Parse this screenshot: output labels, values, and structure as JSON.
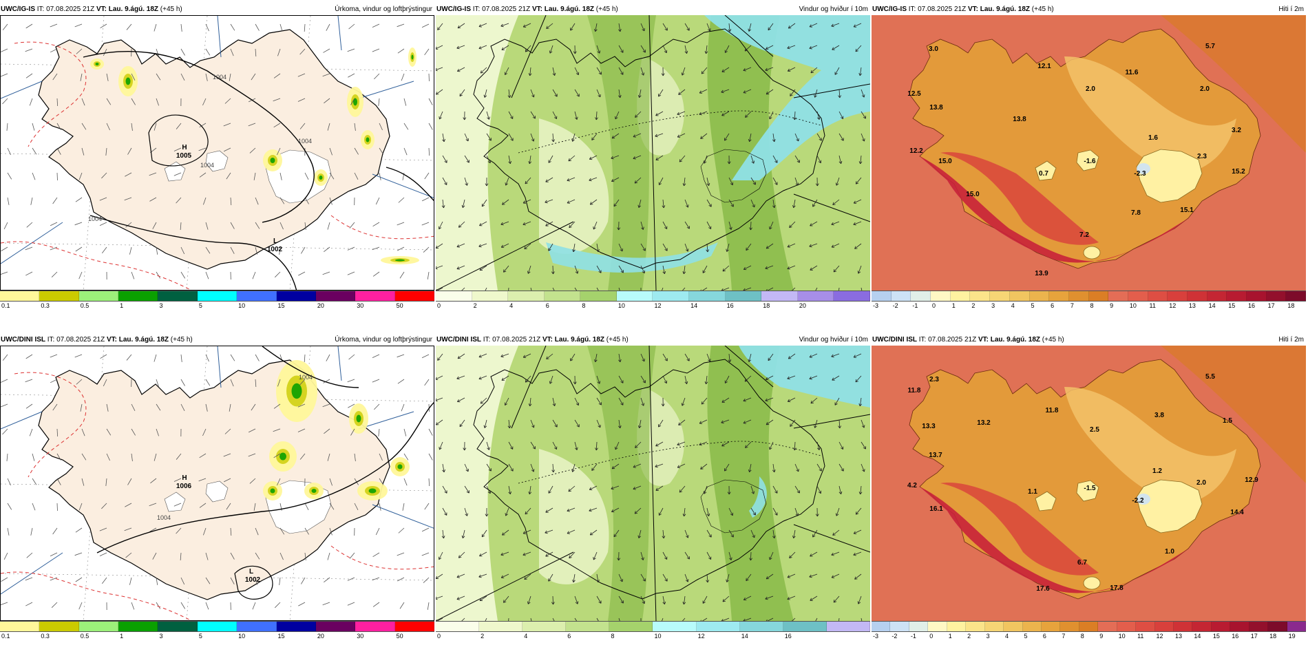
{
  "colors": {
    "land_precip": "#fbeee0",
    "wind_light": "#f3f9d7",
    "wind_mid": "#b9d97a",
    "wind_strong": "#7fb33e",
    "wind_cyan": "#8fe0e6",
    "temp_sea": "#e07155",
    "temp_warm": "#c8223a",
    "temp_mid": "#e39a3a",
    "temp_cold": "#fff1a3"
  },
  "panels": [
    {
      "model": "UWC/IG-IS",
      "it_label": "IT:",
      "it_value": "07.08.2025 21Z",
      "vt_label": "VT:",
      "vt_value": "Lau. 9.ágú. 18Z",
      "lead": "(+45 h)",
      "variable": "Úrkoma, vindur og loftþrýstingur",
      "kind": "precip",
      "map_labels": [
        {
          "text": "H",
          "x": 267,
          "y": 194
        },
        {
          "text": "1005",
          "x": 266,
          "y": 206
        },
        {
          "text": "L",
          "x": 399,
          "y": 330
        },
        {
          "text": "1002",
          "x": 398,
          "y": 342
        }
      ],
      "isobar_labels": [
        {
          "text": "1004",
          "x": 318,
          "y": 92
        },
        {
          "text": "1004",
          "x": 300,
          "y": 220
        },
        {
          "text": "1004",
          "x": 137,
          "y": 298
        },
        {
          "text": "1004",
          "x": 442,
          "y": 185
        }
      ],
      "colorbar": {
        "ticks": [
          "0.1",
          "0.3",
          "0.5",
          "1",
          "3",
          "5",
          "10",
          "15",
          "20",
          "30",
          "50"
        ],
        "colors": [
          "#fff79a",
          "#cbcb00",
          "#9cf07a",
          "#0aa000",
          "#006040",
          "#00ffff",
          "#4070ff",
          "#0000a0",
          "#6a0060",
          "#ff20a0",
          "#ff0000"
        ]
      }
    },
    {
      "model": "UWC/IG-IS",
      "it_label": "IT:",
      "it_value": "07.08.2025 21Z",
      "vt_label": "VT:",
      "vt_value": "Lau. 9.ágú. 18Z",
      "lead": "(+45 h)",
      "variable": "Vindur og hviður í 10m",
      "kind": "wind",
      "map_labels": [],
      "isobar_labels": [],
      "colorbar": {
        "ticks": [
          "0",
          "2",
          "4",
          "6",
          "8",
          "10",
          "12",
          "14",
          "16",
          "18",
          "20"
        ],
        "colors": [
          "#fafeea",
          "#eff8cc",
          "#dcefae",
          "#c3e28e",
          "#a5d26c",
          "#b8fbfb",
          "#9eeaf0",
          "#86d7dc",
          "#6ec0c5",
          "#c3b8f5",
          "#a78ee8",
          "#8a6ce0"
        ]
      }
    },
    {
      "model": "UWC/IG-IS",
      "it_label": "IT:",
      "it_value": "07.08.2025 21Z",
      "vt_label": "VT:",
      "vt_value": "Lau. 9.ágú. 18Z",
      "lead": "(+45 h)",
      "variable": "Hiti í 2m",
      "kind": "temp",
      "map_labels": [
        {
          "text": "3.0",
          "x": 90,
          "y": 52
        },
        {
          "text": "12.1",
          "x": 251,
          "y": 77
        },
        {
          "text": "5.7",
          "x": 492,
          "y": 48
        },
        {
          "text": "11.6",
          "x": 378,
          "y": 86
        },
        {
          "text": "12.5",
          "x": 62,
          "y": 117
        },
        {
          "text": "2.0",
          "x": 318,
          "y": 110
        },
        {
          "text": "2.0",
          "x": 484,
          "y": 110
        },
        {
          "text": "13.8",
          "x": 94,
          "y": 137
        },
        {
          "text": "13.8",
          "x": 215,
          "y": 154
        },
        {
          "text": "3.2",
          "x": 530,
          "y": 170
        },
        {
          "text": "1.6",
          "x": 409,
          "y": 181
        },
        {
          "text": "12.2",
          "x": 65,
          "y": 200
        },
        {
          "text": "15.0",
          "x": 107,
          "y": 215
        },
        {
          "text": "2.3",
          "x": 480,
          "y": 208
        },
        {
          "text": "-1.6",
          "x": 317,
          "y": 215
        },
        {
          "text": "0.7",
          "x": 250,
          "y": 233
        },
        {
          "text": "-2.3",
          "x": 390,
          "y": 233
        },
        {
          "text": "15.2",
          "x": 533,
          "y": 230
        },
        {
          "text": "15.0",
          "x": 147,
          "y": 263
        },
        {
          "text": "7.8",
          "x": 384,
          "y": 290
        },
        {
          "text": "15.1",
          "x": 458,
          "y": 286
        },
        {
          "text": "7.2",
          "x": 309,
          "y": 322
        },
        {
          "text": "13.9",
          "x": 247,
          "y": 378
        }
      ],
      "isobar_labels": [],
      "colorbar": {
        "ticks": [
          "-3",
          "-2",
          "-1",
          "0",
          "1",
          "2",
          "3",
          "4",
          "5",
          "6",
          "7",
          "8",
          "9",
          "10",
          "11",
          "12",
          "13",
          "14",
          "15",
          "16",
          "17",
          "18"
        ],
        "colors": [
          "#b6d0f0",
          "#cde2f6",
          "#e1efe8",
          "#fff8c4",
          "#fff2a0",
          "#fbe48a",
          "#f6d575",
          "#f1c560",
          "#ecb44d",
          "#e7a33c",
          "#e0902f",
          "#db7e25",
          "#e46d56",
          "#e35e4c",
          "#de4e43",
          "#d8403c",
          "#cf3236",
          "#c42633",
          "#b81b31",
          "#a8132e",
          "#93102c",
          "#7d0b2a"
        ]
      }
    },
    {
      "model": "UWC/DINI ISL",
      "it_label": "IT:",
      "it_value": "07.08.2025 21Z",
      "vt_label": "VT:",
      "vt_value": "Lau. 9.ágú. 18Z",
      "lead": "(+45 h)",
      "variable": "Úrkoma, vindur og loftþrýstingur",
      "kind": "precip",
      "map_labels": [
        {
          "text": "H",
          "x": 267,
          "y": 194
        },
        {
          "text": "1006",
          "x": 266,
          "y": 206
        },
        {
          "text": "L",
          "x": 364,
          "y": 330
        },
        {
          "text": "1002",
          "x": 366,
          "y": 342
        }
      ],
      "isobar_labels": [
        {
          "text": "1004",
          "x": 237,
          "y": 252
        },
        {
          "text": "1004",
          "x": 443,
          "y": 48
        }
      ],
      "colorbar": {
        "ticks": [
          "0.1",
          "0.3",
          "0.5",
          "1",
          "3",
          "5",
          "10",
          "15",
          "20",
          "30",
          "50"
        ],
        "colors": [
          "#fff79a",
          "#cbcb00",
          "#9cf07a",
          "#0aa000",
          "#006040",
          "#00ffff",
          "#4070ff",
          "#0000a0",
          "#6a0060",
          "#ff20a0",
          "#ff0000"
        ]
      }
    },
    {
      "model": "UWC/DINI ISL",
      "it_label": "IT:",
      "it_value": "07.08.2025 21Z",
      "vt_label": "VT:",
      "vt_value": "Lau. 9.ágú. 18Z",
      "lead": "(+45 h)",
      "variable": "Vindur og hviður í 10m",
      "kind": "wind",
      "map_labels": [],
      "isobar_labels": [],
      "colorbar": {
        "ticks": [
          "0",
          "2",
          "4",
          "6",
          "8",
          "10",
          "12",
          "14",
          "16"
        ],
        "colors": [
          "#fafeea",
          "#eff8cc",
          "#dcefae",
          "#c3e28e",
          "#a5d26c",
          "#b8fbfb",
          "#9eeaf0",
          "#86d7dc",
          "#6ec0c5",
          "#c3b8f5"
        ]
      }
    },
    {
      "model": "UWC/DINI ISL",
      "it_label": "IT:",
      "it_value": "07.08.2025 21Z",
      "vt_label": "VT:",
      "vt_value": "Lau. 9.ágú. 18Z",
      "lead": "(+45 h)",
      "variable": "Hiti í 2m",
      "kind": "temp",
      "map_labels": [
        {
          "text": "2.3",
          "x": 91,
          "y": 52
        },
        {
          "text": "5.5",
          "x": 492,
          "y": 48
        },
        {
          "text": "11.8",
          "x": 62,
          "y": 68
        },
        {
          "text": "11.8",
          "x": 262,
          "y": 97
        },
        {
          "text": "3.8",
          "x": 418,
          "y": 104
        },
        {
          "text": "1.5",
          "x": 517,
          "y": 112
        },
        {
          "text": "13.3",
          "x": 83,
          "y": 120
        },
        {
          "text": "13.2",
          "x": 163,
          "y": 115
        },
        {
          "text": "2.5",
          "x": 324,
          "y": 125
        },
        {
          "text": "13.7",
          "x": 93,
          "y": 162
        },
        {
          "text": "1.2",
          "x": 415,
          "y": 185
        },
        {
          "text": "12.9",
          "x": 552,
          "y": 198
        },
        {
          "text": "4.2",
          "x": 59,
          "y": 206
        },
        {
          "text": "2.0",
          "x": 479,
          "y": 202
        },
        {
          "text": "1.1",
          "x": 234,
          "y": 215
        },
        {
          "text": "-1.5",
          "x": 317,
          "y": 210
        },
        {
          "text": "-2.2",
          "x": 387,
          "y": 228
        },
        {
          "text": "16.1",
          "x": 94,
          "y": 240
        },
        {
          "text": "14.4",
          "x": 531,
          "y": 245
        },
        {
          "text": "1.0",
          "x": 433,
          "y": 302
        },
        {
          "text": "6.7",
          "x": 306,
          "y": 318
        },
        {
          "text": "17.6",
          "x": 249,
          "y": 356
        },
        {
          "text": "17.8",
          "x": 356,
          "y": 355
        }
      ],
      "isobar_labels": [],
      "colorbar": {
        "ticks": [
          "-3",
          "-2",
          "-1",
          "0",
          "1",
          "2",
          "3",
          "4",
          "5",
          "6",
          "7",
          "8",
          "9",
          "10",
          "11",
          "12",
          "13",
          "14",
          "15",
          "16",
          "17",
          "18",
          "19"
        ],
        "colors": [
          "#b6d0f0",
          "#cde2f6",
          "#e1efe8",
          "#fff8c4",
          "#fff2a0",
          "#fbe48a",
          "#f6d575",
          "#f1c560",
          "#ecb44d",
          "#e7a33c",
          "#e0902f",
          "#db7e25",
          "#e46d56",
          "#e35e4c",
          "#de4e43",
          "#d8403c",
          "#cf3236",
          "#c42633",
          "#b81b31",
          "#a8132e",
          "#93102c",
          "#7d0b2a",
          "#8a2a8e"
        ]
      }
    }
  ]
}
